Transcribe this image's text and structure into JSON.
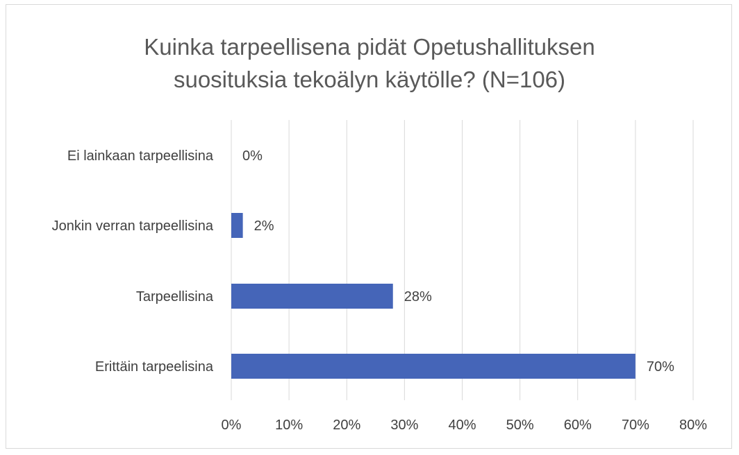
{
  "chart_data": {
    "type": "bar",
    "orientation": "horizontal",
    "title": "Kuinka tarpeellisena pidät Opetushallituksen suosituksia tekoälyn käytölle? (N=106)",
    "title_lines": [
      "Kuinka tarpeellisena pidät Opetushallituksen",
      "suosituksia tekoälyn käytölle? (N=106)"
    ],
    "categories": [
      "Ei lainkaan tarpeellisina",
      "Jonkin verran tarpeellisina",
      "Tarpeellisina",
      "Erittäin tarpeelisina"
    ],
    "values": [
      0,
      2,
      28,
      70
    ],
    "data_labels": [
      "0%",
      "2%",
      "28%",
      "70%"
    ],
    "xlim": [
      0,
      80
    ],
    "ticks": [
      "0%",
      "10%",
      "20%",
      "30%",
      "40%",
      "50%",
      "60%",
      "70%",
      "80%"
    ],
    "grid": true,
    "legend": "none",
    "bar_color": "#4565b8",
    "grid_color": "#d9d9d9"
  }
}
